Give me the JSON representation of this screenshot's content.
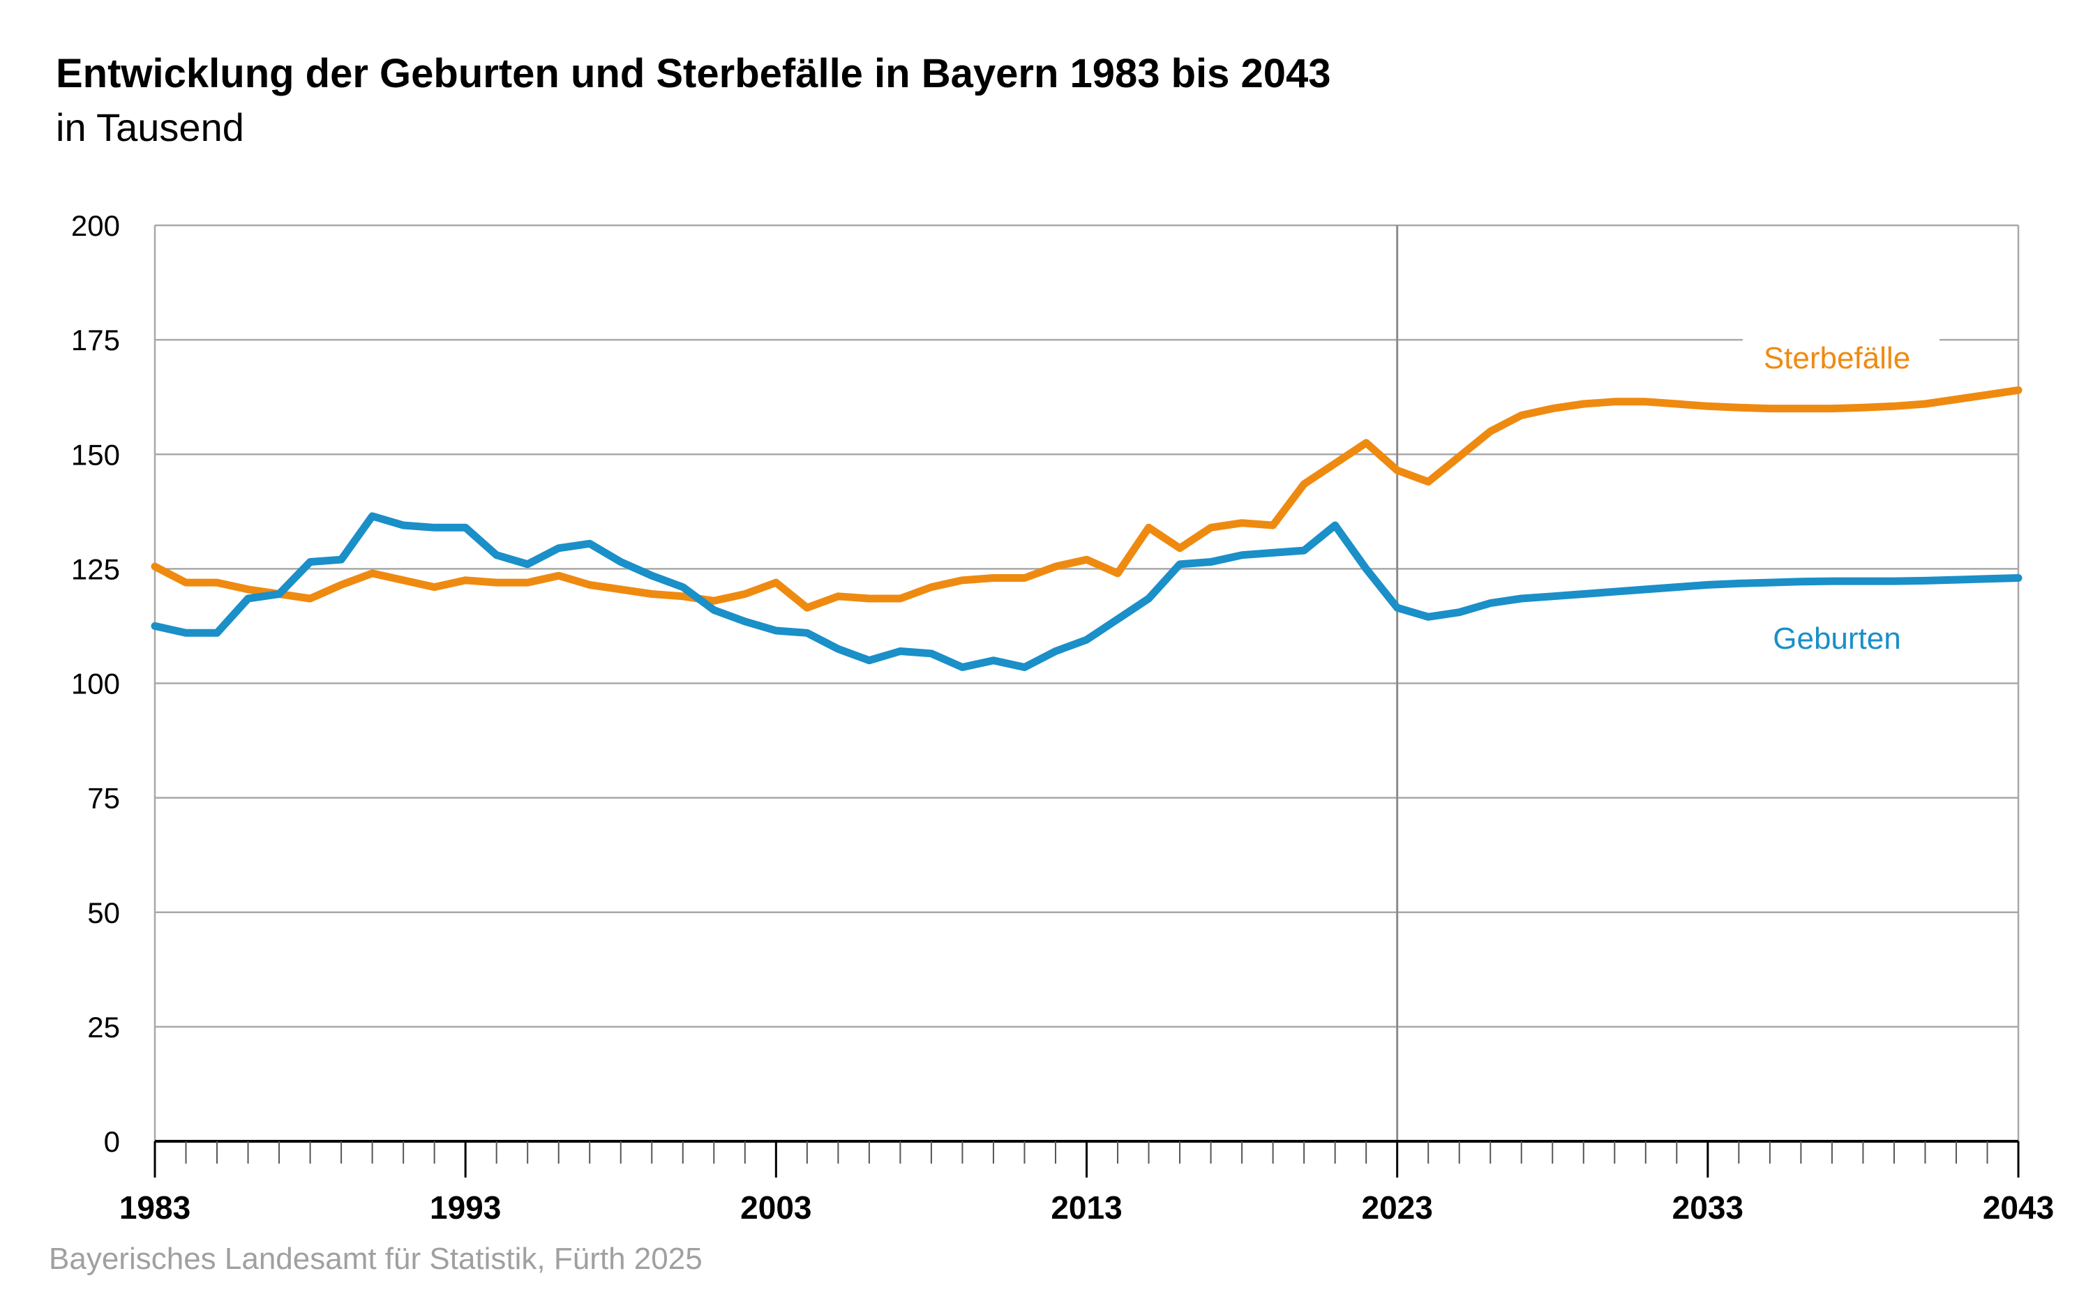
{
  "title": "Entwicklung der Geburten und Sterbefälle in Bayern 1983 bis 2043",
  "subtitle": "in Tausend",
  "source": "Bayerisches Landesamt für Statistik, Fürth 2025",
  "colors": {
    "geburten": "#1a8fc8",
    "sterbefaelle": "#ef8a10",
    "grid": "#a8a8a8",
    "axis": "#000000"
  },
  "chart_data": {
    "type": "line",
    "title": "Entwicklung der Geburten und Sterbefälle in Bayern 1983 bis 2043",
    "subtitle": "in Tausend",
    "xlabel": "",
    "ylabel": "",
    "xlim": [
      1983,
      2043
    ],
    "ylim": [
      0,
      200
    ],
    "yticks": [
      0,
      25,
      50,
      75,
      100,
      125,
      150,
      175,
      200
    ],
    "xtick_labels": [
      "1983",
      "1993",
      "2003",
      "2013",
      "2023",
      "2033",
      "2043"
    ],
    "grid": true,
    "reference_line_x": 2023,
    "x": [
      1983,
      1984,
      1985,
      1986,
      1987,
      1988,
      1989,
      1990,
      1991,
      1992,
      1993,
      1994,
      1995,
      1996,
      1997,
      1998,
      1999,
      2000,
      2001,
      2002,
      2003,
      2004,
      2005,
      2006,
      2007,
      2008,
      2009,
      2010,
      2011,
      2012,
      2013,
      2014,
      2015,
      2016,
      2017,
      2018,
      2019,
      2020,
      2021,
      2022,
      2023,
      2024,
      2025,
      2026,
      2027,
      2028,
      2029,
      2030,
      2031,
      2032,
      2033,
      2034,
      2035,
      2036,
      2037,
      2038,
      2039,
      2040,
      2041,
      2042,
      2043
    ],
    "series": [
      {
        "name": "Sterbefälle",
        "color": "#ef8a10",
        "values": [
          125.5,
          122.0,
          122.0,
          120.5,
          119.5,
          118.5,
          121.5,
          124.0,
          122.5,
          121.0,
          122.5,
          122.0,
          122.0,
          123.5,
          121.5,
          120.5,
          119.5,
          119.0,
          118.0,
          119.5,
          122.0,
          116.5,
          119.0,
          118.5,
          118.5,
          121.0,
          122.5,
          123.0,
          123.0,
          125.5,
          127.0,
          124.0,
          134.0,
          129.5,
          134.0,
          135.0,
          134.5,
          143.5,
          148.0,
          152.5,
          146.5,
          144.0,
          149.5,
          155.0,
          158.5,
          160.0,
          161.0,
          161.5,
          161.5,
          161.0,
          160.5,
          160.2,
          160.0,
          160.0,
          160.0,
          160.2,
          160.5,
          161.0,
          162.0,
          163.0,
          164.0
        ]
      },
      {
        "name": "Geburten",
        "color": "#1a8fc8",
        "values": [
          112.5,
          111.0,
          111.0,
          118.5,
          119.5,
          126.5,
          127.0,
          136.5,
          134.5,
          134.0,
          134.0,
          128.0,
          126.0,
          129.5,
          130.5,
          126.5,
          123.5,
          121.0,
          116.0,
          113.5,
          111.5,
          111.0,
          107.5,
          105.0,
          107.0,
          106.5,
          103.5,
          105.0,
          103.5,
          107.0,
          109.5,
          114.0,
          118.5,
          126.0,
          126.5,
          128.0,
          128.5,
          129.0,
          134.5,
          125.0,
          116.5,
          114.5,
          115.5,
          117.5,
          118.5,
          119.0,
          119.5,
          120.0,
          120.5,
          121.0,
          121.5,
          121.8,
          122.0,
          122.2,
          122.3,
          122.3,
          122.3,
          122.4,
          122.6,
          122.8,
          123.0
        ]
      }
    ]
  }
}
